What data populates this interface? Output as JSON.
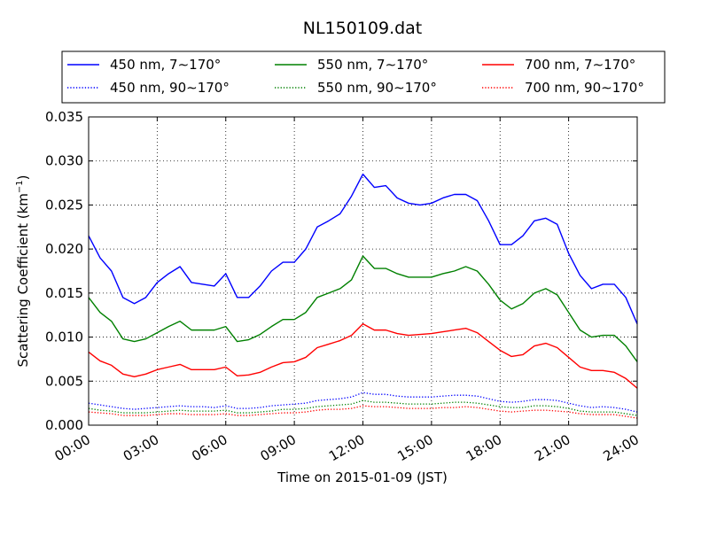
{
  "chart_data": {
    "type": "line",
    "title": "NL150109.dat",
    "xlabel": "Time on 2015-01-09 (JST)",
    "ylabel": "Scattering Coefficient (km",
    "ylabel_sup": "−1",
    "ylabel_end": ")",
    "x_unit": "hours since 00:00",
    "xlim": [
      0,
      24
    ],
    "ylim": [
      0,
      0.035
    ],
    "x_ticks": [
      0,
      3,
      6,
      9,
      12,
      15,
      18,
      21,
      24
    ],
    "x_tick_labels": [
      "00:00",
      "03:00",
      "06:00",
      "09:00",
      "12:00",
      "15:00",
      "18:00",
      "21:00",
      "24:00"
    ],
    "y_ticks": [
      0,
      0.005,
      0.01,
      0.015,
      0.02,
      0.025,
      0.03,
      0.035
    ],
    "y_tick_labels": [
      "0.000",
      "0.005",
      "0.010",
      "0.015",
      "0.020",
      "0.025",
      "0.030",
      "0.035"
    ],
    "grid": true,
    "legend_position": "top-center (above plot)",
    "legend_columns": 3,
    "x": [
      0,
      0.5,
      1,
      1.5,
      2,
      2.5,
      3,
      3.5,
      4,
      4.5,
      5,
      5.5,
      6,
      6.5,
      7,
      7.5,
      8,
      8.5,
      9,
      9.5,
      10,
      10.5,
      11,
      11.5,
      12,
      12.5,
      13,
      13.5,
      14,
      14.5,
      15,
      15.5,
      16,
      16.5,
      17,
      17.5,
      18,
      18.5,
      19,
      19.5,
      20,
      20.5,
      21,
      21.5,
      22,
      22.5,
      23,
      23.5,
      24
    ],
    "series": [
      {
        "name": "450 nm, 7∼170°",
        "color": "#0000ff",
        "dash": "solid",
        "values": [
          0.0215,
          0.019,
          0.0175,
          0.0145,
          0.0138,
          0.0145,
          0.0162,
          0.0172,
          0.018,
          0.0162,
          0.016,
          0.0158,
          0.0172,
          0.0145,
          0.0145,
          0.0158,
          0.0175,
          0.0185,
          0.0185,
          0.02,
          0.0225,
          0.0232,
          0.024,
          0.026,
          0.0285,
          0.027,
          0.0272,
          0.0258,
          0.0252,
          0.025,
          0.0252,
          0.0258,
          0.0262,
          0.0262,
          0.0255,
          0.0232,
          0.0205,
          0.0205,
          0.0215,
          0.0232,
          0.0235,
          0.0228,
          0.0195,
          0.017,
          0.0155,
          0.016,
          0.016,
          0.0145,
          0.0115
        ]
      },
      {
        "name": "550 nm, 7∼170°",
        "color": "#008000",
        "dash": "solid",
        "values": [
          0.0145,
          0.0128,
          0.0118,
          0.0098,
          0.0095,
          0.0098,
          0.0105,
          0.0112,
          0.0118,
          0.0108,
          0.0108,
          0.0108,
          0.0112,
          0.0095,
          0.0097,
          0.0103,
          0.0112,
          0.012,
          0.012,
          0.0128,
          0.0145,
          0.015,
          0.0155,
          0.0165,
          0.0192,
          0.0178,
          0.0178,
          0.0172,
          0.0168,
          0.0168,
          0.0168,
          0.0172,
          0.0175,
          0.018,
          0.0175,
          0.016,
          0.0142,
          0.0132,
          0.0138,
          0.015,
          0.0155,
          0.0148,
          0.0128,
          0.0108,
          0.01,
          0.0102,
          0.0102,
          0.009,
          0.0072
        ]
      },
      {
        "name": "700 nm, 7∼170°",
        "color": "#ff0000",
        "dash": "solid",
        "values": [
          0.0083,
          0.0073,
          0.0068,
          0.0058,
          0.0055,
          0.0058,
          0.0063,
          0.0066,
          0.0069,
          0.0063,
          0.0063,
          0.0063,
          0.0066,
          0.0056,
          0.0057,
          0.006,
          0.0066,
          0.0071,
          0.0072,
          0.0077,
          0.0088,
          0.0092,
          0.0096,
          0.0102,
          0.0115,
          0.0108,
          0.0108,
          0.0104,
          0.0102,
          0.0103,
          0.0104,
          0.0106,
          0.0108,
          0.011,
          0.0105,
          0.0095,
          0.0085,
          0.0078,
          0.008,
          0.009,
          0.0093,
          0.0088,
          0.0077,
          0.0066,
          0.0062,
          0.0062,
          0.006,
          0.0053,
          0.0042
        ]
      },
      {
        "name": "450 nm, 90∼170°",
        "color": "#0000ff",
        "dash": "dotted",
        "values": [
          0.0025,
          0.0023,
          0.0021,
          0.0019,
          0.0018,
          0.0019,
          0.002,
          0.0021,
          0.0022,
          0.0021,
          0.0021,
          0.002,
          0.0022,
          0.0019,
          0.0019,
          0.002,
          0.0022,
          0.0023,
          0.0024,
          0.0025,
          0.0028,
          0.0029,
          0.003,
          0.0032,
          0.0037,
          0.0035,
          0.0035,
          0.0033,
          0.0032,
          0.0032,
          0.0032,
          0.0033,
          0.0034,
          0.0034,
          0.0033,
          0.003,
          0.0027,
          0.0026,
          0.0027,
          0.0029,
          0.0029,
          0.0028,
          0.0025,
          0.0022,
          0.002,
          0.0021,
          0.002,
          0.0018,
          0.0015
        ]
      },
      {
        "name": "550 nm, 90∼170°",
        "color": "#008000",
        "dash": "dotted",
        "values": [
          0.0019,
          0.0017,
          0.0016,
          0.0014,
          0.0014,
          0.0014,
          0.0015,
          0.0016,
          0.0017,
          0.0016,
          0.0016,
          0.0016,
          0.0017,
          0.0014,
          0.0014,
          0.0015,
          0.0016,
          0.0018,
          0.0018,
          0.0019,
          0.0021,
          0.0022,
          0.0023,
          0.0024,
          0.0028,
          0.0026,
          0.0026,
          0.0025,
          0.0024,
          0.0024,
          0.0024,
          0.0025,
          0.0026,
          0.0026,
          0.0025,
          0.0023,
          0.0021,
          0.002,
          0.002,
          0.0022,
          0.0022,
          0.0021,
          0.0019,
          0.0016,
          0.0015,
          0.0015,
          0.0015,
          0.0013,
          0.0011
        ]
      },
      {
        "name": "700 nm, 90∼170°",
        "color": "#ff0000",
        "dash": "dotted",
        "values": [
          0.0015,
          0.0014,
          0.0013,
          0.0011,
          0.0011,
          0.0011,
          0.0012,
          0.0013,
          0.0013,
          0.0012,
          0.0012,
          0.0012,
          0.0013,
          0.0011,
          0.0011,
          0.0012,
          0.0013,
          0.0014,
          0.0014,
          0.0015,
          0.0017,
          0.0018,
          0.0018,
          0.0019,
          0.0022,
          0.0021,
          0.0021,
          0.002,
          0.0019,
          0.0019,
          0.0019,
          0.002,
          0.002,
          0.0021,
          0.002,
          0.0018,
          0.0016,
          0.0015,
          0.0016,
          0.0017,
          0.0017,
          0.0016,
          0.0015,
          0.0013,
          0.0012,
          0.0012,
          0.0012,
          0.001,
          0.0008
        ]
      }
    ]
  }
}
